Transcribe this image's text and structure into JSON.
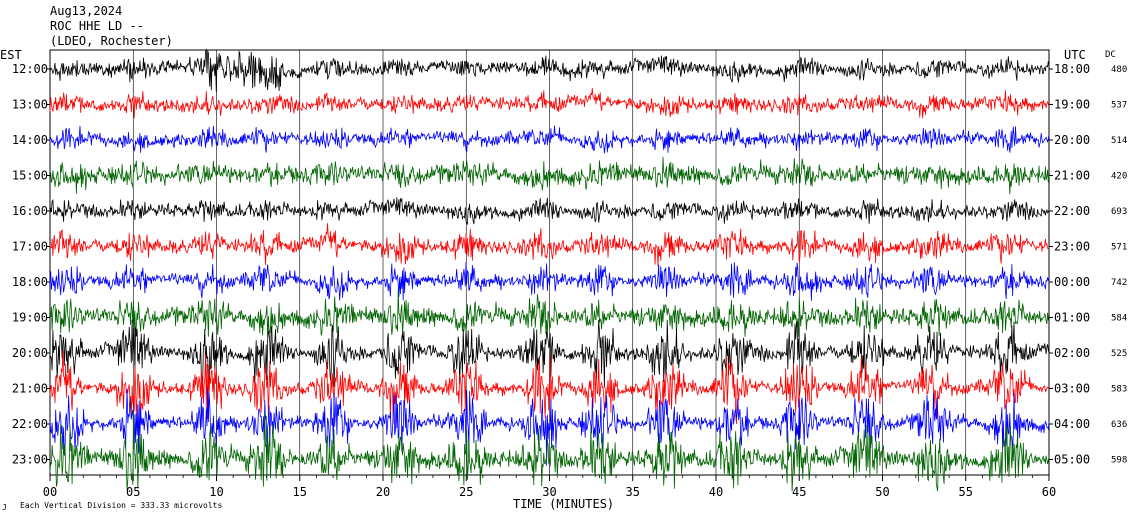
{
  "header": {
    "date": "Aug13,2024",
    "station": "ROC HHE LD --",
    "location": "(LDEO, Rochester)"
  },
  "chart_data": {
    "type": "line",
    "title": "",
    "xlabel": "TIME (MINUTES)",
    "left_axis_label": "EST",
    "right_axis_label": "UTC",
    "dc_label": "DC",
    "xlim": [
      0,
      60
    ],
    "x_ticks": [
      "00",
      "05",
      "10",
      "15",
      "20",
      "25",
      "30",
      "35",
      "40",
      "45",
      "50",
      "55",
      "60"
    ],
    "rows_est": [
      "12:00",
      "13:00",
      "14:00",
      "15:00",
      "16:00",
      "17:00",
      "18:00",
      "19:00",
      "20:00",
      "21:00",
      "22:00",
      "23:00"
    ],
    "rows_utc": [
      "18:00",
      "19:00",
      "20:00",
      "21:00",
      "22:00",
      "23:00",
      "00:00",
      "01:00",
      "02:00",
      "03:00",
      "04:00",
      "05:00"
    ],
    "dc_offsets": [
      "480",
      "537",
      "514",
      "420",
      "693",
      "571",
      "742",
      "584",
      "525",
      "583",
      "636",
      "598"
    ],
    "trace_colors": [
      "#000000",
      "#ff0000",
      "#0000ff",
      "#006400"
    ],
    "grid": true,
    "footer_note": "Each Vertical Division = 333.33 microvolts",
    "corner_mark": "J"
  }
}
